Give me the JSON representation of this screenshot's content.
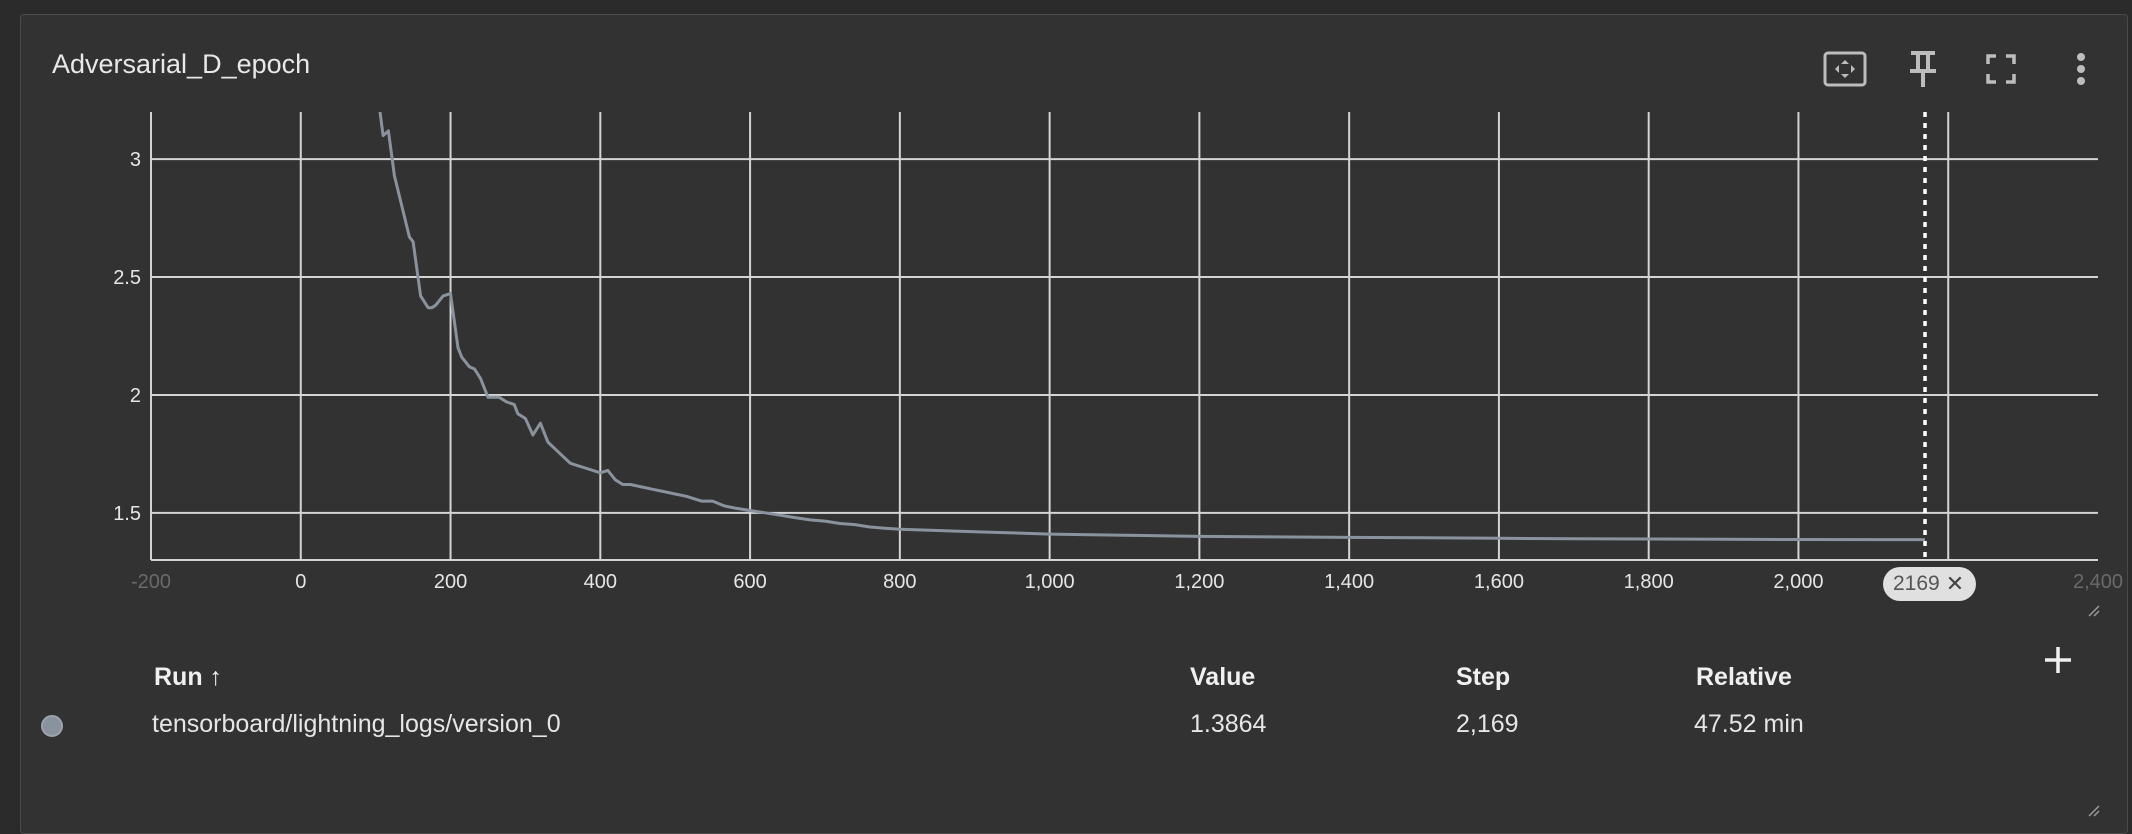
{
  "card": {
    "title": "Adversarial_D_epoch"
  },
  "toolbar": {
    "icons": [
      "fit-domain-icon",
      "pin-icon",
      "fullscreen-icon",
      "more-vert-icon"
    ]
  },
  "chart_data": {
    "type": "line",
    "title": "",
    "xlabel": "",
    "ylabel": "",
    "xlim": [
      -200,
      2400
    ],
    "ylim": [
      1.3,
      3.2
    ],
    "x_ticks": [
      -200,
      0,
      200,
      400,
      600,
      800,
      1000,
      1200,
      1400,
      1600,
      1800,
      2000,
      2200,
      2400
    ],
    "x_tick_labels": [
      "-200",
      "0",
      "200",
      "400",
      "600",
      "800",
      "1,000",
      "1,200",
      "1,400",
      "1,600",
      "1,800",
      "2,000",
      "2,200",
      "2,400"
    ],
    "y_ticks": [
      1.5,
      2,
      2.5,
      3
    ],
    "y_tick_labels": [
      "1.5",
      "2",
      "2.5",
      "3"
    ],
    "grid": true,
    "line_color": "#8a939d",
    "series": [
      {
        "x": [
          105,
          110,
          117,
          125,
          135,
          145,
          150,
          160,
          170,
          175,
          180,
          190,
          200,
          210,
          215,
          225,
          232,
          240,
          250,
          265,
          275,
          285,
          290,
          300,
          310,
          320,
          330,
          340,
          350,
          360,
          370,
          380,
          390,
          400,
          410,
          420,
          430,
          440,
          455,
          470,
          485,
          500,
          515,
          525,
          535,
          550,
          565,
          580,
          600,
          620,
          640,
          660,
          680,
          700,
          720,
          740,
          760,
          780,
          800,
          850,
          900,
          950,
          1000,
          1100,
          1200,
          1300,
          1400,
          1500,
          1600,
          1700,
          1800,
          1900,
          2000,
          2100,
          2169
        ],
        "y": [
          3.22,
          3.1,
          3.12,
          2.93,
          2.8,
          2.67,
          2.65,
          2.42,
          2.37,
          2.37,
          2.38,
          2.42,
          2.43,
          2.2,
          2.16,
          2.12,
          2.11,
          2.07,
          1.99,
          1.99,
          1.97,
          1.96,
          1.92,
          1.9,
          1.83,
          1.88,
          1.8,
          1.77,
          1.74,
          1.71,
          1.7,
          1.69,
          1.68,
          1.67,
          1.68,
          1.64,
          1.62,
          1.62,
          1.61,
          1.6,
          1.59,
          1.58,
          1.57,
          1.56,
          1.55,
          1.55,
          1.53,
          1.52,
          1.51,
          1.5,
          1.49,
          1.48,
          1.47,
          1.465,
          1.455,
          1.45,
          1.44,
          1.435,
          1.43,
          1.425,
          1.42,
          1.415,
          1.41,
          1.405,
          1.4,
          1.398,
          1.396,
          1.394,
          1.392,
          1.39,
          1.389,
          1.388,
          1.387,
          1.3866,
          1.3864
        ]
      }
    ],
    "cursor_step": 2169,
    "cursor_label": "2169"
  },
  "table": {
    "headers": {
      "run": "Run ↑",
      "value": "Value",
      "step": "Step",
      "relative": "Relative"
    },
    "rows": [
      {
        "run": "tensorboard/lightning_logs/version_0",
        "value": "1.3864",
        "step": "2,169",
        "relative": "47.52 min",
        "color": "#8a939d"
      }
    ]
  }
}
